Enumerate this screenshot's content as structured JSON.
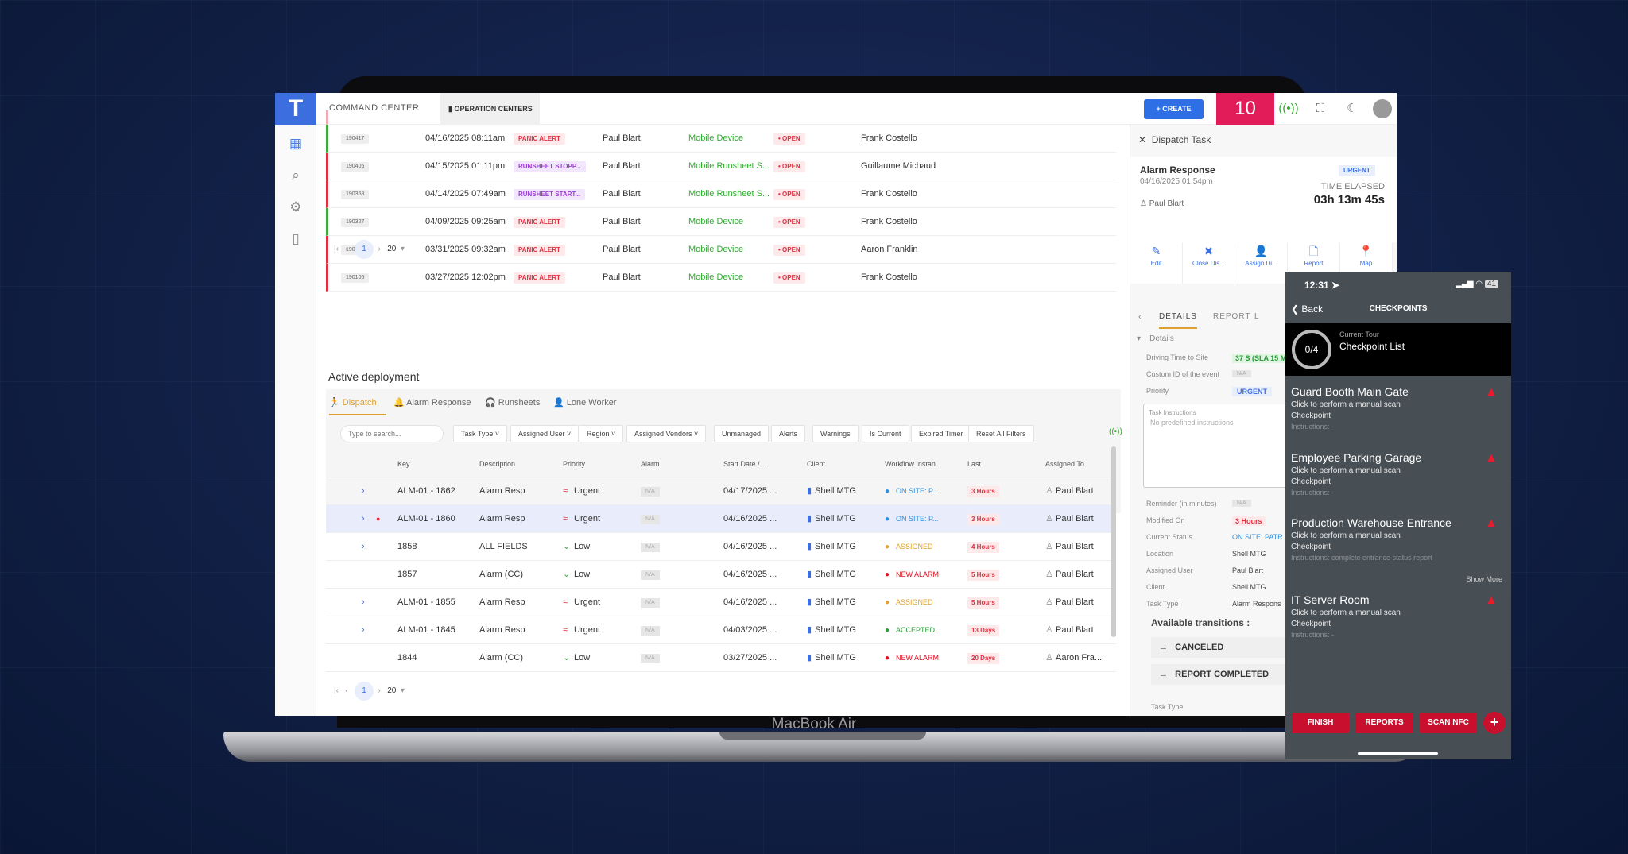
{
  "device_label": "MacBook Air",
  "header": {
    "section": "COMMAND CENTER",
    "tab": "OPERATION CENTERS",
    "create": "+ CREATE",
    "alert_count": "10"
  },
  "alerts_table": {
    "rows": [
      {
        "id": "190417",
        "date": "04/16/2025 08:11am",
        "type": "PANIC ALERT",
        "kind": "panic",
        "user": "Paul Blart",
        "source": "Mobile Device",
        "status": "• OPEN",
        "assignee": "Frank Costello",
        "edge": "#3aaa3a"
      },
      {
        "id": "190405",
        "date": "04/15/2025 01:11pm",
        "type": "RUNSHEET STOPP...",
        "kind": "run",
        "user": "Paul Blart",
        "source": "Mobile Runsheet S...",
        "status": "• OPEN",
        "assignee": "Guillaume Michaud",
        "edge": "#e03040"
      },
      {
        "id": "190368",
        "date": "04/14/2025 07:49am",
        "type": "RUNSHEET START...",
        "kind": "run",
        "user": "Paul Blart",
        "source": "Mobile Runsheet S...",
        "status": "• OPEN",
        "assignee": "Frank Costello",
        "edge": "#e03040"
      },
      {
        "id": "190327",
        "date": "04/09/2025 09:25am",
        "type": "PANIC ALERT",
        "kind": "panic",
        "user": "Paul Blart",
        "source": "Mobile Device",
        "status": "• OPEN",
        "assignee": "Frank Costello",
        "edge": "#3aaa3a"
      },
      {
        "id": "190170",
        "date": "03/31/2025 09:32am",
        "type": "PANIC ALERT",
        "kind": "panic",
        "user": "Paul Blart",
        "source": "Mobile Device",
        "status": "• OPEN",
        "assignee": "Aaron Franklin",
        "edge": "#e03040"
      },
      {
        "id": "190106",
        "date": "03/27/2025 12:02pm",
        "type": "PANIC ALERT",
        "kind": "panic",
        "user": "Paul Blart",
        "source": "Mobile Device",
        "status": "• OPEN",
        "assignee": "Frank Costello",
        "edge": "#e03040"
      }
    ],
    "page": "1",
    "page_size": "20"
  },
  "deployment": {
    "title": "Active deployment",
    "tabs": [
      "Dispatch",
      "Alarm Response",
      "Runsheets",
      "Lone Worker"
    ],
    "search_placeholder": "Type to search...",
    "filters": [
      "Task Type ˅",
      "Assigned User ˅",
      "Region ˅",
      "Assigned Vendors ˅",
      "Unmanaged",
      "Alerts",
      "Warnings",
      "Is Current",
      "Expired Timer",
      "Reset All Filters"
    ],
    "columns": [
      "Key",
      "Description",
      "Priority",
      "Alarm",
      "Start Date / ...",
      "Client",
      "Workflow Instan...",
      "Last",
      "Assigned To"
    ],
    "rows": [
      {
        "key": "ALM-01 - 1862",
        "desc": "Alarm Resp",
        "priority": "Urgent",
        "alarm": "N/A",
        "date": "04/17/2025 ...",
        "client": "Shell MTG",
        "workflow": "ON SITE: P...",
        "wcolor": "#2d8fe0",
        "last": "3 Hours",
        "assigned": "Paul Blart",
        "expand": true
      },
      {
        "key": "ALM-01 - 1860",
        "desc": "Alarm Resp",
        "priority": "Urgent",
        "alarm": "N/A",
        "date": "04/16/2025 ...",
        "client": "Shell MTG",
        "workflow": "ON SITE: P...",
        "wcolor": "#2d8fe0",
        "last": "3 Hours",
        "assigned": "Paul Blart",
        "expand": true,
        "selected": true
      },
      {
        "key": "1858",
        "desc": "ALL FIELDS",
        "priority": "Low",
        "alarm": "N/A",
        "date": "04/16/2025 ...",
        "client": "Shell MTG",
        "workflow": "ASSIGNED",
        "wcolor": "#e0a030",
        "last": "4 Hours",
        "assigned": "Paul Blart",
        "expand": true
      },
      {
        "key": "1857",
        "desc": "Alarm (CC)",
        "priority": "Low",
        "alarm": "N/A",
        "date": "04/16/2025 ...",
        "client": "Shell MTG",
        "workflow": "NEW ALARM",
        "wcolor": "#e01020",
        "last": "5 Hours",
        "assigned": "Paul Blart",
        "expand": false
      },
      {
        "key": "ALM-01 - 1855",
        "desc": "Alarm Resp",
        "priority": "Urgent",
        "alarm": "N/A",
        "date": "04/16/2025 ...",
        "client": "Shell MTG",
        "workflow": "ASSIGNED",
        "wcolor": "#e0a030",
        "last": "5 Hours",
        "assigned": "Paul Blart",
        "expand": true
      },
      {
        "key": "ALM-01 - 1845",
        "desc": "Alarm Resp",
        "priority": "Urgent",
        "alarm": "N/A",
        "date": "04/03/2025 ...",
        "client": "Shell MTG",
        "workflow": "ACCEPTED...",
        "wcolor": "#2a9a3a",
        "last": "13 Days",
        "assigned": "Paul Blart",
        "expand": true
      },
      {
        "key": "1844",
        "desc": "Alarm (CC)",
        "priority": "Low",
        "alarm": "N/A",
        "date": "03/27/2025 ...",
        "client": "Shell MTG",
        "workflow": "NEW ALARM",
        "wcolor": "#e01020",
        "last": "20 Days",
        "assigned": "Aaron Fra...",
        "expand": false
      }
    ],
    "page": "1",
    "page_size": "20"
  },
  "dispatch": {
    "title": "Dispatch Task",
    "task": "Alarm Response",
    "date": "04/16/2025 01:54pm",
    "user": "Paul Blart",
    "priority": "URGENT",
    "elapsed_label": "TIME ELAPSED",
    "elapsed": "03h 13m 45s",
    "actions": [
      "Edit",
      "Close Dis...",
      "Assign Di...",
      "Report",
      "Map"
    ],
    "tabs": [
      "DETAILS",
      "REPORT",
      "L"
    ],
    "section": "Details",
    "fields": [
      {
        "label": "Driving Time to Site",
        "value": "37 S (SLA 15 MIN"
      },
      {
        "label": "Custom ID of the event",
        "value": "N/A"
      },
      {
        "label": "Priority",
        "value": "URGENT"
      }
    ],
    "instructions_label": "Task Instructions",
    "instructions": "No predefined instructions",
    "fields2": [
      {
        "label": "Reminder (in minutes)",
        "value": "N/A"
      },
      {
        "label": "Modified On",
        "value": "3 Hours"
      },
      {
        "label": "Current Status",
        "value": "ON SITE: PATR"
      },
      {
        "label": "Location",
        "value": "Shell MTG"
      },
      {
        "label": "Assigned User",
        "value": "Paul Blart"
      },
      {
        "label": "Client",
        "value": "Shell MTG"
      },
      {
        "label": "Task Type",
        "value": "Alarm Respons"
      }
    ],
    "transitions_label": "Available transitions :",
    "transitions": [
      "CANCELED",
      "REPORT COMPLETED"
    ],
    "next_section": "Task Type"
  },
  "phone": {
    "time": "12:31",
    "battery": "41",
    "back": "Back",
    "title": "CHECKPOINTS",
    "progress": "0/4",
    "tour_label": "Current Tour",
    "tour": "Checkpoint List",
    "checkpoints": [
      {
        "name": "Guard Booth Main Gate",
        "action": "Click to perform a manual scan",
        "type": "Checkpoint",
        "instructions": "Instructions: -"
      },
      {
        "name": "Employee Parking Garage",
        "action": "Click to perform a manual scan",
        "type": "Checkpoint",
        "instructions": "Instructions: -"
      },
      {
        "name": "Production Warehouse Entrance",
        "action": "Click to perform a manual scan",
        "type": "Checkpoint",
        "instructions": "Instructions: complete entrance status report",
        "more": "Show More"
      },
      {
        "name": "IT Server Room",
        "action": "Click to perform a manual scan",
        "type": "Checkpoint",
        "instructions": "Instructions: -"
      }
    ],
    "buttons": [
      "FINISH",
      "REPORTS",
      "SCAN NFC"
    ]
  }
}
